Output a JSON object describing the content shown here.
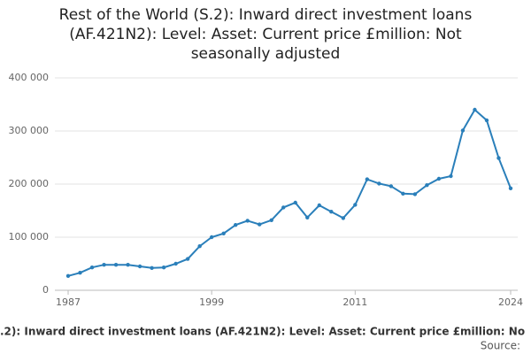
{
  "chart_data": {
    "type": "line",
    "title": "Rest of the World (S.2): Inward direct investment loans (AF.421N2): Level: Asset: Current price £million: Not seasonally adjusted",
    "x_label": ".2): Inward direct investment loans (AF.421N2): Level: Asset: Current price £million: No",
    "source": "Source:",
    "x": [
      1987,
      1988,
      1989,
      1990,
      1991,
      1992,
      1993,
      1994,
      1995,
      1996,
      1997,
      1998,
      1999,
      2000,
      2001,
      2002,
      2003,
      2004,
      2005,
      2006,
      2007,
      2008,
      2009,
      2010,
      2011,
      2012,
      2013,
      2014,
      2015,
      2016,
      2017,
      2018,
      2019,
      2020,
      2021,
      2022,
      2023,
      2024
    ],
    "values": [
      27000,
      33000,
      43000,
      48000,
      48000,
      48000,
      45000,
      42000,
      43000,
      50000,
      59000,
      83000,
      100000,
      107000,
      123000,
      131000,
      124000,
      132000,
      156000,
      165000,
      137000,
      160000,
      148000,
      136000,
      161000,
      209000,
      201000,
      196000,
      182000,
      181000,
      198000,
      210000,
      215000,
      301000,
      340000,
      320000,
      249000,
      192000
    ],
    "color": "#2a7fba",
    "xlim": [
      1987,
      2024
    ],
    "xticks": [
      1987,
      1999,
      2011,
      2024
    ],
    "ylim": [
      0,
      400000
    ],
    "yticks": [
      0,
      {
        "value": 100000,
        "label": "100 000"
      },
      {
        "value": 200000,
        "label": "200 000"
      },
      {
        "value": 300000,
        "label": "300 000"
      },
      {
        "value": 400000,
        "label": "400 000"
      }
    ],
    "grid": true
  }
}
